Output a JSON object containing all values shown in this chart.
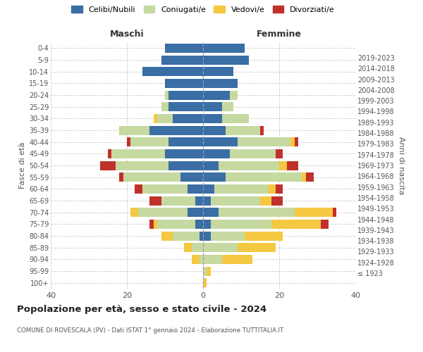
{
  "age_groups": [
    "100+",
    "95-99",
    "90-94",
    "85-89",
    "80-84",
    "75-79",
    "70-74",
    "65-69",
    "60-64",
    "55-59",
    "50-54",
    "45-49",
    "40-44",
    "35-39",
    "30-34",
    "25-29",
    "20-24",
    "15-19",
    "10-14",
    "5-9",
    "0-4"
  ],
  "birth_years": [
    "≤ 1923",
    "1924-1928",
    "1929-1933",
    "1934-1938",
    "1939-1943",
    "1944-1948",
    "1949-1953",
    "1954-1958",
    "1959-1963",
    "1964-1968",
    "1969-1973",
    "1974-1978",
    "1979-1983",
    "1984-1988",
    "1989-1993",
    "1994-1998",
    "1999-2003",
    "2004-2008",
    "2009-2013",
    "2014-2018",
    "2019-2023"
  ],
  "male_celibi": [
    0,
    0,
    0,
    0,
    1,
    2,
    4,
    2,
    4,
    6,
    9,
    10,
    9,
    14,
    8,
    9,
    9,
    10,
    16,
    11,
    10
  ],
  "male_coniugati": [
    0,
    0,
    1,
    3,
    7,
    10,
    13,
    9,
    12,
    15,
    14,
    14,
    10,
    8,
    4,
    2,
    1,
    0,
    0,
    0,
    0
  ],
  "male_vedovi": [
    0,
    0,
    2,
    2,
    3,
    1,
    2,
    0,
    0,
    0,
    0,
    0,
    0,
    0,
    1,
    0,
    0,
    0,
    0,
    0,
    0
  ],
  "male_divorziati": [
    0,
    0,
    0,
    0,
    0,
    1,
    0,
    3,
    2,
    1,
    4,
    1,
    1,
    0,
    0,
    0,
    0,
    0,
    0,
    0,
    0
  ],
  "female_celibi": [
    0,
    0,
    0,
    0,
    2,
    2,
    4,
    2,
    3,
    6,
    4,
    7,
    9,
    6,
    5,
    5,
    7,
    9,
    8,
    12,
    11
  ],
  "female_coniugati": [
    0,
    1,
    5,
    9,
    9,
    16,
    20,
    13,
    14,
    20,
    16,
    12,
    14,
    9,
    7,
    3,
    2,
    0,
    0,
    0,
    0
  ],
  "female_vedovi": [
    1,
    1,
    8,
    10,
    10,
    13,
    10,
    3,
    2,
    1,
    2,
    0,
    1,
    0,
    0,
    0,
    0,
    0,
    0,
    0,
    0
  ],
  "female_divorziati": [
    0,
    0,
    0,
    0,
    0,
    2,
    1,
    3,
    2,
    2,
    3,
    2,
    1,
    1,
    0,
    0,
    0,
    0,
    0,
    0,
    0
  ],
  "colors": {
    "celibi": "#3a6ea5",
    "coniugati": "#c5d9a0",
    "vedovi": "#f5c842",
    "divorziati": "#c0312b"
  },
  "xlim": 40,
  "title": "Popolazione per età, sesso e stato civile - 2024",
  "subtitle": "COMUNE DI ROVESCALA (PV) - Dati ISTAT 1° gennaio 2024 - Elaborazione TUTTITALIA.IT",
  "ylabel_left": "Fasce di età",
  "ylabel_right": "Anni di nascita",
  "xlabel_left": "Maschi",
  "xlabel_right": "Femmine",
  "legend_labels": [
    "Celibi/Nubili",
    "Coniugati/e",
    "Vedovi/e",
    "Divorziati/e"
  ],
  "background_color": "#ffffff",
  "grid_color": "#cccccc"
}
